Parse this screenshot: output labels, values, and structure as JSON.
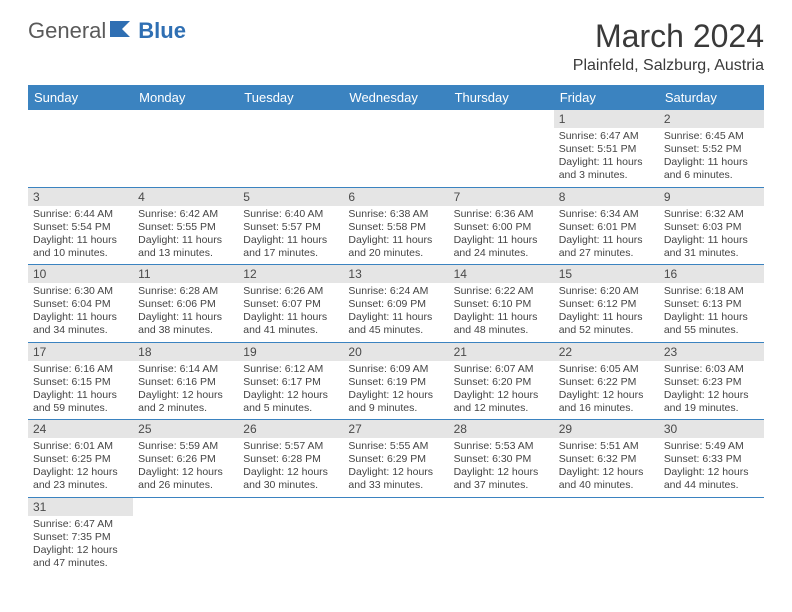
{
  "logo": {
    "text1": "General",
    "text2": "Blue"
  },
  "title": "March 2024",
  "subtitle": "Plainfeld, Salzburg, Austria",
  "colors": {
    "header_bg": "#3b83c0",
    "header_fg": "#ffffff",
    "daynum_bg": "#e5e5e5",
    "daynum_fg": "#4a4a4a",
    "body_fg": "#444444",
    "rule": "#3b83c0",
    "logo_gray": "#5a5a5a",
    "logo_blue": "#2f6fb3"
  },
  "day_headers": [
    "Sunday",
    "Monday",
    "Tuesday",
    "Wednesday",
    "Thursday",
    "Friday",
    "Saturday"
  ],
  "weeks": [
    [
      null,
      null,
      null,
      null,
      null,
      {
        "n": "1",
        "sunrise": "6:47 AM",
        "sunset": "5:51 PM",
        "daylight": "11 hours and 3 minutes."
      },
      {
        "n": "2",
        "sunrise": "6:45 AM",
        "sunset": "5:52 PM",
        "daylight": "11 hours and 6 minutes."
      }
    ],
    [
      {
        "n": "3",
        "sunrise": "6:44 AM",
        "sunset": "5:54 PM",
        "daylight": "11 hours and 10 minutes."
      },
      {
        "n": "4",
        "sunrise": "6:42 AM",
        "sunset": "5:55 PM",
        "daylight": "11 hours and 13 minutes."
      },
      {
        "n": "5",
        "sunrise": "6:40 AM",
        "sunset": "5:57 PM",
        "daylight": "11 hours and 17 minutes."
      },
      {
        "n": "6",
        "sunrise": "6:38 AM",
        "sunset": "5:58 PM",
        "daylight": "11 hours and 20 minutes."
      },
      {
        "n": "7",
        "sunrise": "6:36 AM",
        "sunset": "6:00 PM",
        "daylight": "11 hours and 24 minutes."
      },
      {
        "n": "8",
        "sunrise": "6:34 AM",
        "sunset": "6:01 PM",
        "daylight": "11 hours and 27 minutes."
      },
      {
        "n": "9",
        "sunrise": "6:32 AM",
        "sunset": "6:03 PM",
        "daylight": "11 hours and 31 minutes."
      }
    ],
    [
      {
        "n": "10",
        "sunrise": "6:30 AM",
        "sunset": "6:04 PM",
        "daylight": "11 hours and 34 minutes."
      },
      {
        "n": "11",
        "sunrise": "6:28 AM",
        "sunset": "6:06 PM",
        "daylight": "11 hours and 38 minutes."
      },
      {
        "n": "12",
        "sunrise": "6:26 AM",
        "sunset": "6:07 PM",
        "daylight": "11 hours and 41 minutes."
      },
      {
        "n": "13",
        "sunrise": "6:24 AM",
        "sunset": "6:09 PM",
        "daylight": "11 hours and 45 minutes."
      },
      {
        "n": "14",
        "sunrise": "6:22 AM",
        "sunset": "6:10 PM",
        "daylight": "11 hours and 48 minutes."
      },
      {
        "n": "15",
        "sunrise": "6:20 AM",
        "sunset": "6:12 PM",
        "daylight": "11 hours and 52 minutes."
      },
      {
        "n": "16",
        "sunrise": "6:18 AM",
        "sunset": "6:13 PM",
        "daylight": "11 hours and 55 minutes."
      }
    ],
    [
      {
        "n": "17",
        "sunrise": "6:16 AM",
        "sunset": "6:15 PM",
        "daylight": "11 hours and 59 minutes."
      },
      {
        "n": "18",
        "sunrise": "6:14 AM",
        "sunset": "6:16 PM",
        "daylight": "12 hours and 2 minutes."
      },
      {
        "n": "19",
        "sunrise": "6:12 AM",
        "sunset": "6:17 PM",
        "daylight": "12 hours and 5 minutes."
      },
      {
        "n": "20",
        "sunrise": "6:09 AM",
        "sunset": "6:19 PM",
        "daylight": "12 hours and 9 minutes."
      },
      {
        "n": "21",
        "sunrise": "6:07 AM",
        "sunset": "6:20 PM",
        "daylight": "12 hours and 12 minutes."
      },
      {
        "n": "22",
        "sunrise": "6:05 AM",
        "sunset": "6:22 PM",
        "daylight": "12 hours and 16 minutes."
      },
      {
        "n": "23",
        "sunrise": "6:03 AM",
        "sunset": "6:23 PM",
        "daylight": "12 hours and 19 minutes."
      }
    ],
    [
      {
        "n": "24",
        "sunrise": "6:01 AM",
        "sunset": "6:25 PM",
        "daylight": "12 hours and 23 minutes."
      },
      {
        "n": "25",
        "sunrise": "5:59 AM",
        "sunset": "6:26 PM",
        "daylight": "12 hours and 26 minutes."
      },
      {
        "n": "26",
        "sunrise": "5:57 AM",
        "sunset": "6:28 PM",
        "daylight": "12 hours and 30 minutes."
      },
      {
        "n": "27",
        "sunrise": "5:55 AM",
        "sunset": "6:29 PM",
        "daylight": "12 hours and 33 minutes."
      },
      {
        "n": "28",
        "sunrise": "5:53 AM",
        "sunset": "6:30 PM",
        "daylight": "12 hours and 37 minutes."
      },
      {
        "n": "29",
        "sunrise": "5:51 AM",
        "sunset": "6:32 PM",
        "daylight": "12 hours and 40 minutes."
      },
      {
        "n": "30",
        "sunrise": "5:49 AM",
        "sunset": "6:33 PM",
        "daylight": "12 hours and 44 minutes."
      }
    ],
    [
      {
        "n": "31",
        "sunrise": "6:47 AM",
        "sunset": "7:35 PM",
        "daylight": "12 hours and 47 minutes."
      },
      null,
      null,
      null,
      null,
      null,
      null
    ]
  ],
  "labels": {
    "sunrise": "Sunrise:",
    "sunset": "Sunset:",
    "daylight": "Daylight:"
  }
}
